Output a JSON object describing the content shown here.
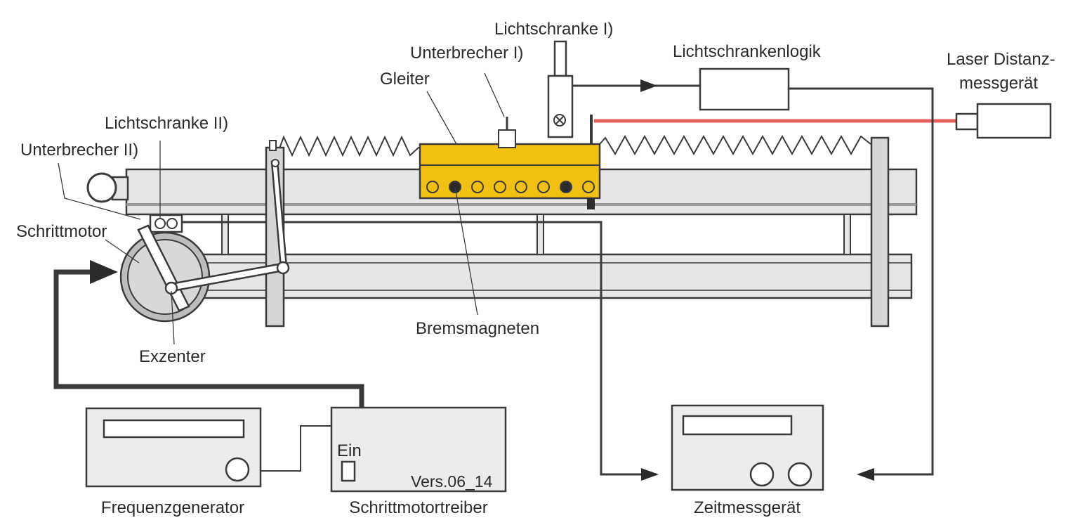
{
  "labels": {
    "lichtschranke_1": "Lichtschranke I)",
    "unterbrecher_1": "Unterbrecher I)",
    "gleiter": "Gleiter",
    "lichtschrankenlogik": "Lichtschrankenlogik",
    "laser_line1": "Laser Distanz-",
    "laser_line2": "messgerät",
    "lichtschranke_2": "Lichtschranke II)",
    "unterbrecher_2": "Unterbrecher II)",
    "schrittmotor": "Schrittmotor",
    "exzenter": "Exzenter",
    "bremsmagneten": "Bremsmagneten",
    "frequenzgenerator": "Frequenzgenerator",
    "schrittmotortreiber": "Schrittmotortreiber",
    "zeitmessgeraet": "Zeitmessgerät",
    "ein": "Ein",
    "version": "Vers.06_14"
  },
  "colors": {
    "glider": "#f2c012",
    "laser_beam": "#e8605a",
    "rail": "#e6e6e6",
    "device": "#ececec",
    "wire": "#3a3a3a",
    "motor_outer": "#bdbdbd",
    "motor_inner": "#d8d8d8"
  }
}
